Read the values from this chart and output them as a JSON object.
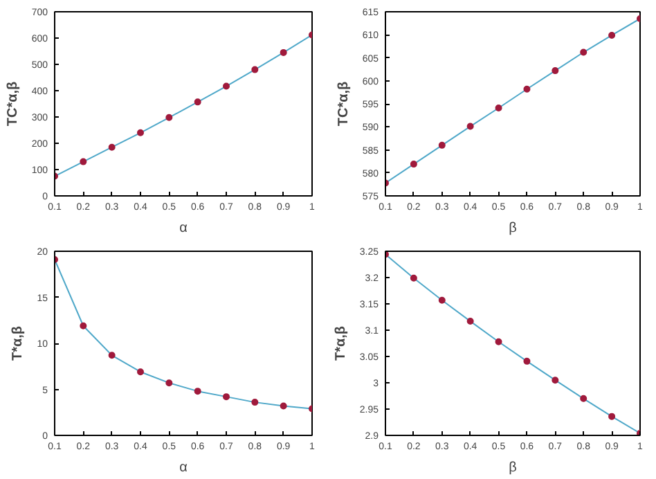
{
  "chart_data": [
    {
      "type": "line",
      "xlabel": "α",
      "ylabel": "TC*α,β",
      "x": [
        0.1,
        0.2,
        0.3,
        0.4,
        0.5,
        0.6,
        0.7,
        0.8,
        0.9,
        1
      ],
      "xlim": [
        0.1,
        1
      ],
      "xticks": [
        0.1,
        0.2,
        0.3,
        0.4,
        0.5,
        0.6,
        0.7,
        0.8,
        0.9,
        1
      ],
      "ylim": [
        0,
        700
      ],
      "yticks": [
        0,
        100,
        200,
        300,
        400,
        500,
        600,
        700
      ],
      "marker": "circle",
      "grid": false,
      "series": [
        {
          "color": "#4fa8c9",
          "colors": [
            "#a01a3c",
            "#a01a3c",
            "#a01a3c",
            "#a01a3c",
            "#a01a3c",
            "#a01a3c",
            "#a01a3c",
            "#a01a3c",
            "#a01a3c",
            "#a01a3c"
          ],
          "values": [
            75,
            130,
            185,
            240,
            298,
            357,
            417,
            480,
            545,
            612
          ]
        }
      ]
    },
    {
      "type": "line",
      "xlabel": "β",
      "ylabel": "TC*α,β",
      "x": [
        0.1,
        0.2,
        0.3,
        0.4,
        0.5,
        0.6,
        0.7,
        0.8,
        0.9,
        1
      ],
      "xlim": [
        0.1,
        1
      ],
      "xticks": [
        0.1,
        0.2,
        0.3,
        0.4,
        0.5,
        0.6,
        0.7,
        0.8,
        0.9,
        1
      ],
      "ylim": [
        575,
        615
      ],
      "yticks": [
        575,
        580,
        585,
        590,
        595,
        600,
        605,
        610,
        615
      ],
      "marker": "circle",
      "grid": false,
      "series": [
        {
          "color": "#4fa8c9",
          "colors": [
            "#a01a3c",
            "#a01a3c",
            "#a01a3c",
            "#a01a3c",
            "#a01a3c",
            "#a01a3c",
            "#a01a3c",
            "#a01a3c",
            "#a01a3c",
            "#a01a3c"
          ],
          "values": [
            577.8,
            581.9,
            586.0,
            590.1,
            594.1,
            598.2,
            602.2,
            606.2,
            609.9,
            613.5
          ]
        }
      ]
    },
    {
      "type": "line",
      "xlabel": "α",
      "ylabel": "T*α,β",
      "x": [
        0.1,
        0.2,
        0.3,
        0.4,
        0.5,
        0.6,
        0.7,
        0.8,
        0.9,
        1
      ],
      "xlim": [
        0.1,
        1
      ],
      "xticks": [
        0.1,
        0.2,
        0.3,
        0.4,
        0.5,
        0.6,
        0.7,
        0.8,
        0.9,
        1
      ],
      "ylim": [
        0,
        20
      ],
      "yticks": [
        0,
        5,
        10,
        15,
        20
      ],
      "marker": "circle",
      "grid": false,
      "series": [
        {
          "color": "#4fa8c9",
          "colors": [
            "#a01a3c",
            "#a01a3c",
            "#a01a3c",
            "#a01a3c",
            "#a01a3c",
            "#a01a3c",
            "#a01a3c",
            "#a01a3c",
            "#a01a3c",
            "#a01a3c"
          ],
          "values": [
            19.1,
            11.9,
            8.7,
            6.9,
            5.7,
            4.8,
            4.2,
            3.6,
            3.2,
            2.9
          ]
        }
      ]
    },
    {
      "type": "line",
      "xlabel": "β",
      "ylabel": "T*α,β",
      "x": [
        0.1,
        0.2,
        0.3,
        0.4,
        0.5,
        0.6,
        0.7,
        0.8,
        0.9,
        1
      ],
      "xlim": [
        0.1,
        1
      ],
      "xticks": [
        0.1,
        0.2,
        0.3,
        0.4,
        0.5,
        0.6,
        0.7,
        0.8,
        0.9,
        1
      ],
      "ylim": [
        2.9,
        3.25
      ],
      "yticks": [
        2.9,
        2.95,
        3,
        3.05,
        3.1,
        3.15,
        3.2,
        3.25
      ],
      "marker": "circle",
      "grid": false,
      "series": [
        {
          "color": "#4fa8c9",
          "colors": [
            "#a01a3c",
            "#a01a3c",
            "#a01a3c",
            "#a01a3c",
            "#a01a3c",
            "#a01a3c",
            "#a01a3c",
            "#a01a3c",
            "#a01a3c",
            "#a01a3c"
          ],
          "values": [
            3.244,
            3.199,
            3.157,
            3.117,
            3.078,
            3.041,
            3.005,
            2.97,
            2.936,
            2.904
          ]
        }
      ]
    }
  ]
}
